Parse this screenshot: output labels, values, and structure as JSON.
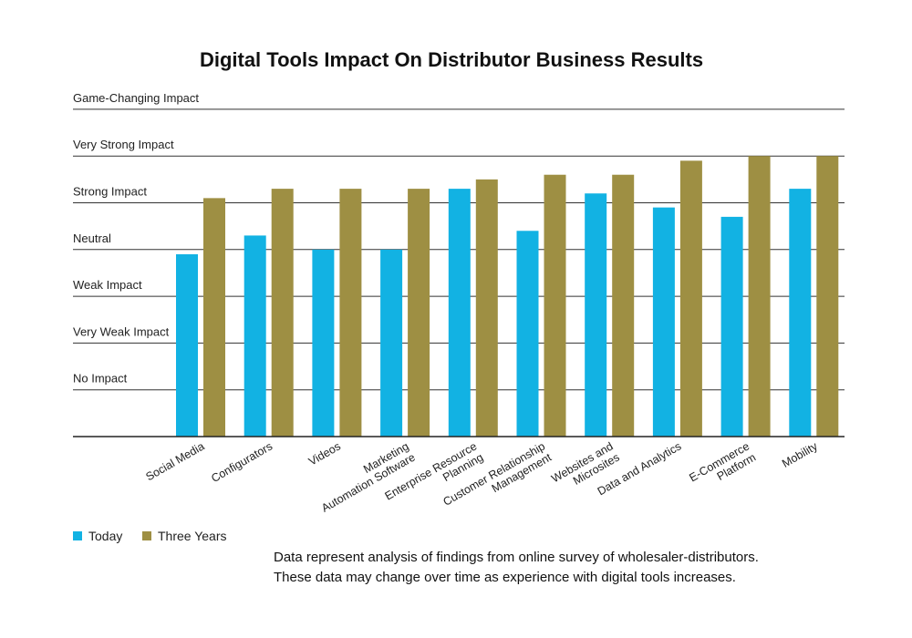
{
  "chart_data": {
    "type": "bar",
    "title": "Digital Tools Impact On Distributor Business Results",
    "y_levels": [
      "No Impact",
      "Very Weak Impact",
      "Weak  Impact",
      "Neutral",
      "Strong Impact",
      "Very Strong Impact",
      "Game-Changing Impact"
    ],
    "ylim": [
      0,
      7
    ],
    "grid": true,
    "legend_position": "bottom-left",
    "categories": [
      [
        "Social Media"
      ],
      [
        "Configurators"
      ],
      [
        "Videos"
      ],
      [
        "Marketing",
        "Automation Software"
      ],
      [
        "Enterprise  Resource",
        "Planning"
      ],
      [
        "Customer  Relationship",
        "Management"
      ],
      [
        "Websites and",
        "Microsites"
      ],
      [
        "Data and Analytics"
      ],
      [
        "E-Commerce",
        "Platform"
      ],
      [
        "Mobility"
      ]
    ],
    "series": [
      {
        "name": "Today",
        "color": "#12b2e3",
        "values": [
          3.9,
          4.3,
          4.0,
          4.0,
          5.3,
          4.4,
          5.2,
          4.9,
          4.7,
          5.3
        ]
      },
      {
        "name": "Three Years",
        "color": "#9e8f43",
        "values": [
          5.1,
          5.3,
          5.3,
          5.3,
          5.5,
          5.6,
          5.6,
          5.9,
          6.0,
          6.0
        ]
      }
    ]
  },
  "footnote": {
    "line1": "Data represent analysis of findings from online survey of wholesaler-distributors.",
    "line2": "These data may change over time as experience with digital tools increases."
  }
}
